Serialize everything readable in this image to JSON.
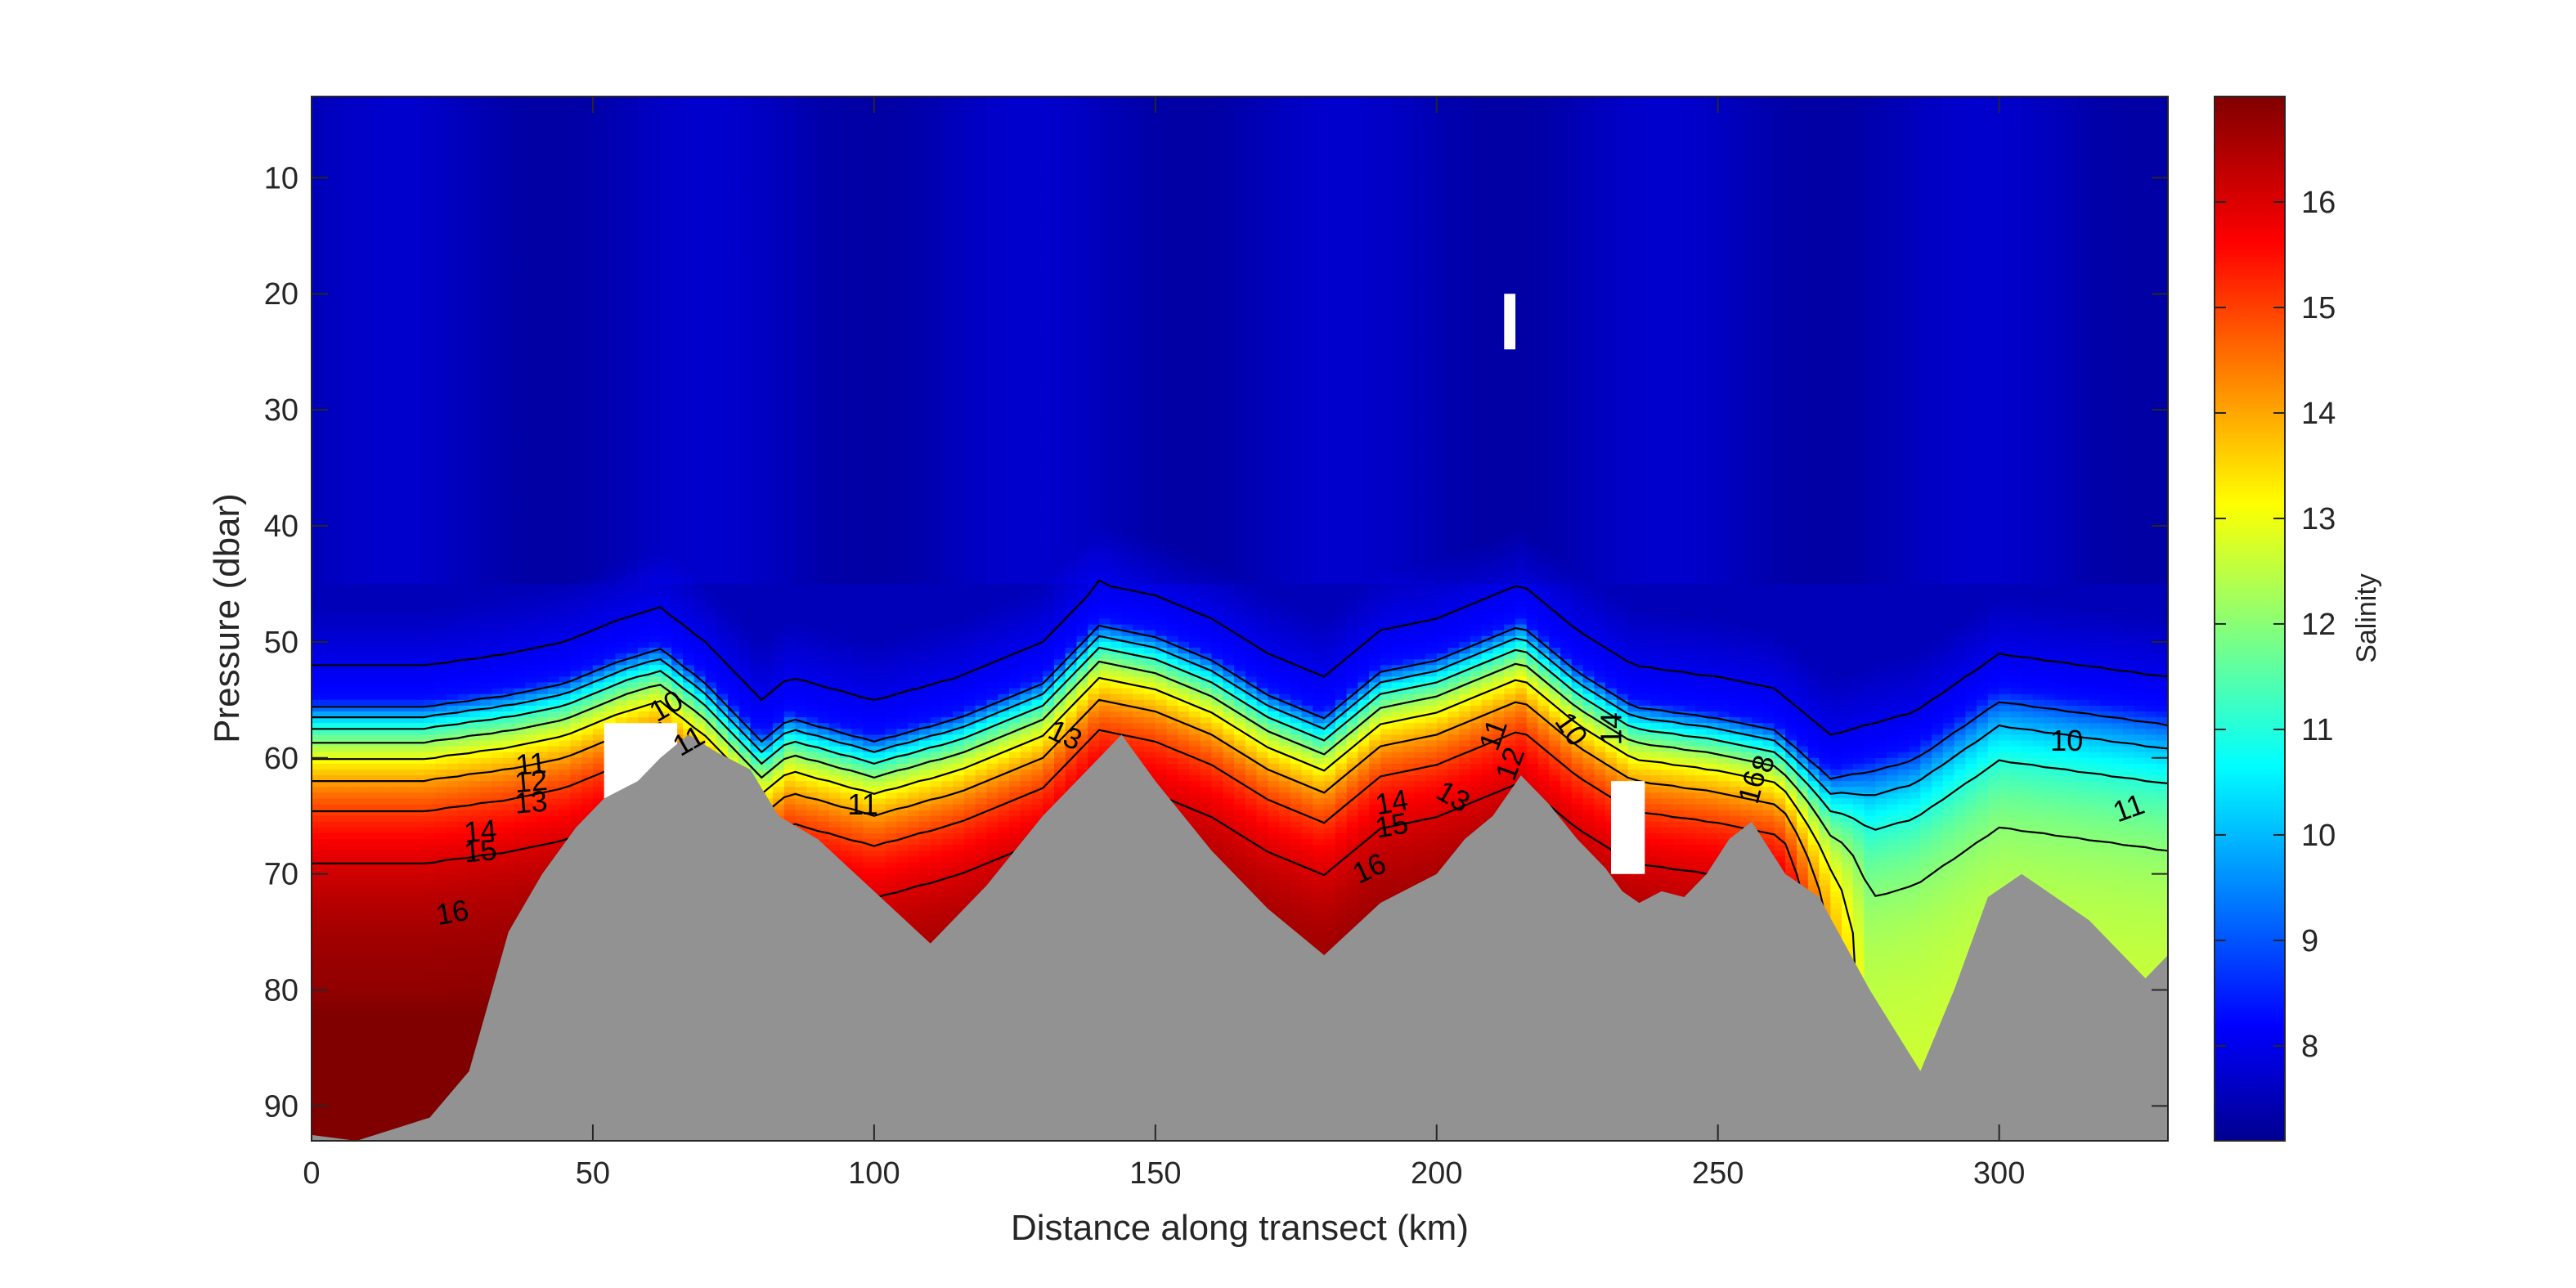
{
  "chart_data": {
    "type": "contour",
    "title": "",
    "xlabel": "Distance along transect (km)",
    "ylabel": "Pressure (dbar)",
    "xlim": [
      0,
      330
    ],
    "ylim": [
      93,
      3
    ],
    "y_reversed": true,
    "x_ticks": [
      0,
      50,
      100,
      150,
      200,
      250,
      300
    ],
    "x_tick_labels": [
      "0",
      "50",
      "100",
      "150",
      "200",
      "250",
      "300"
    ],
    "y_ticks": [
      10,
      20,
      30,
      40,
      50,
      60,
      70,
      80,
      90
    ],
    "y_tick_labels": [
      "10",
      "20",
      "30",
      "40",
      "50",
      "60",
      "70",
      "80",
      "90"
    ],
    "colorbar": {
      "label": "Salinity",
      "limits": [
        7.1,
        17.0
      ],
      "ticks": [
        8,
        9,
        10,
        11,
        12,
        13,
        14,
        15,
        16
      ],
      "tick_labels": [
        "8",
        "9",
        "10",
        "11",
        "12",
        "13",
        "14",
        "15",
        "16"
      ],
      "colormap": "jet"
    },
    "contour_levels": [
      8,
      9,
      10,
      11,
      12,
      13,
      14,
      15,
      16
    ],
    "contour_labels": [
      {
        "text": "10",
        "x": 63,
        "y": 55.5,
        "rotate": -30
      },
      {
        "text": "11",
        "x": 67,
        "y": 58.5,
        "rotate": -30
      },
      {
        "text": "11",
        "x": 39,
        "y": 60.5,
        "rotate": -5
      },
      {
        "text": "12",
        "x": 39,
        "y": 62.0,
        "rotate": -5
      },
      {
        "text": "13",
        "x": 39,
        "y": 63.8,
        "rotate": -5
      },
      {
        "text": "14",
        "x": 30,
        "y": 66.3,
        "rotate": -5
      },
      {
        "text": "15",
        "x": 30,
        "y": 68.0,
        "rotate": -5
      },
      {
        "text": "16",
        "x": 25,
        "y": 73.3,
        "rotate": -10
      },
      {
        "text": "11",
        "x": 98,
        "y": 64.0,
        "rotate": 0
      },
      {
        "text": "13",
        "x": 134,
        "y": 58.0,
        "rotate": 25
      },
      {
        "text": "14",
        "x": 192,
        "y": 63.8,
        "rotate": -10
      },
      {
        "text": "15",
        "x": 192,
        "y": 65.8,
        "rotate": -10
      },
      {
        "text": "13",
        "x": 203,
        "y": 63.3,
        "rotate": 30
      },
      {
        "text": "16",
        "x": 188,
        "y": 69.5,
        "rotate": -25
      },
      {
        "text": "11",
        "x": 210,
        "y": 58.0,
        "rotate": -70
      },
      {
        "text": "12",
        "x": 213,
        "y": 60.5,
        "rotate": -70
      },
      {
        "text": "10",
        "x": 224,
        "y": 57.5,
        "rotate": 55
      },
      {
        "text": "14",
        "x": 231,
        "y": 57.5,
        "rotate": -90
      },
      {
        "text": "16",
        "x": 256,
        "y": 62.5,
        "rotate": -75
      },
      {
        "text": "8",
        "x": 258,
        "y": 60.5,
        "rotate": -75
      },
      {
        "text": "10",
        "x": 312,
        "y": 58.5,
        "rotate": 0
      },
      {
        "text": "11",
        "x": 323,
        "y": 64.3,
        "rotate": -20
      }
    ],
    "seafloor": {
      "x": [
        0,
        8,
        21,
        28,
        35,
        41,
        47,
        52,
        58,
        62,
        67,
        72,
        78,
        83,
        90,
        100,
        110,
        120,
        130,
        138,
        144,
        150,
        160,
        170,
        180,
        190,
        200,
        205,
        210,
        215,
        220,
        225,
        230,
        233,
        236,
        240,
        244,
        248,
        252,
        256,
        262,
        268,
        277,
        286,
        292,
        298,
        304,
        310,
        316,
        322,
        326,
        330
      ],
      "y": [
        92.5,
        93.0,
        91.0,
        87.0,
        75.0,
        70.0,
        66.0,
        63.5,
        62.0,
        60.0,
        58.0,
        59.5,
        61.0,
        65.0,
        67.0,
        71.5,
        76.0,
        71.0,
        65.0,
        61.0,
        58.0,
        62.0,
        68.0,
        73.0,
        77.0,
        72.5,
        70.0,
        67.0,
        65.0,
        61.5,
        64.0,
        67.0,
        69.5,
        71.5,
        72.5,
        71.5,
        72.0,
        70.0,
        67.0,
        65.5,
        70.0,
        72.0,
        80.0,
        87.0,
        80.0,
        72.0,
        70.0,
        72.0,
        74.0,
        77.0,
        79.0,
        77.0
      ]
    },
    "no_data_gaps": [
      {
        "x": [
          52,
          52,
          65,
          65
        ],
        "y": [
          57,
          64,
          64,
          57
        ]
      },
      {
        "x": [
          212,
          212,
          214,
          214
        ],
        "y": [
          20,
          24.8,
          24.8,
          20
        ]
      },
      {
        "x": [
          231,
          231,
          237,
          237
        ],
        "y": [
          62,
          70,
          70,
          62
        ]
      }
    ],
    "colors": {
      "seafloor": "#929292",
      "contour_line": "#000000",
      "axes": "#262626"
    }
  }
}
